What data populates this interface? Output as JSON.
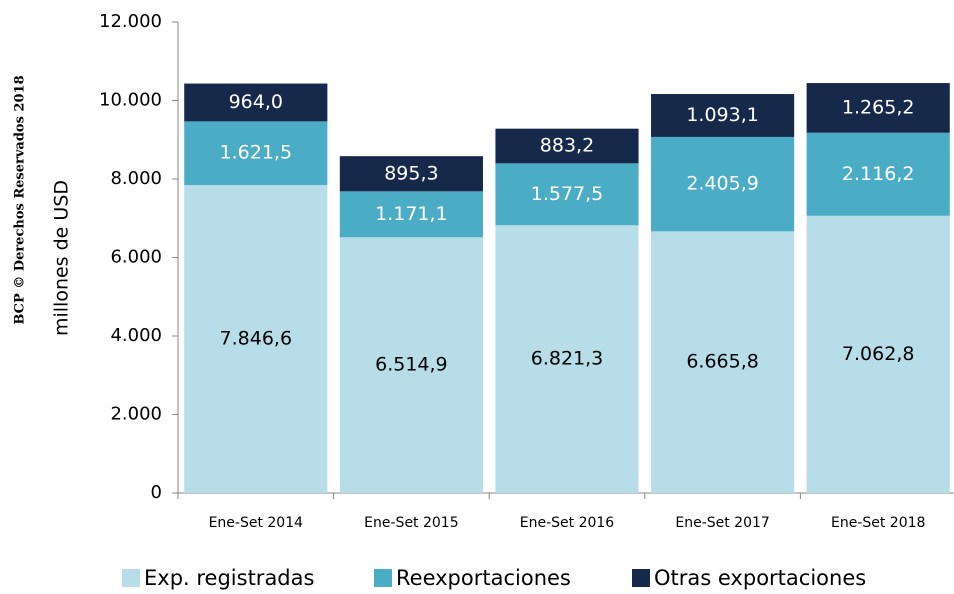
{
  "chart_data": {
    "type": "stacked_bar",
    "watermark": "BCP © Derechos Reservados 2018",
    "y_label": "millones de  USD",
    "categories": [
      "Ene-Set 2014",
      "Ene-Set 2015",
      "Ene-Set 2016",
      "Ene-Set 2017",
      "Ene-Set 2018"
    ],
    "series": [
      {
        "name": "Exp. registradas",
        "color": "#b7dde8",
        "label_color": "#000000",
        "values": [
          7846.6,
          6514.9,
          6821.3,
          6665.8,
          7062.8
        ],
        "value_labels": [
          "7.846,6",
          "6.514,9",
          "6.821,3",
          "6.665,8",
          "7.062,8"
        ]
      },
      {
        "name": "Reexportaciones",
        "color": "#4bacc6",
        "label_color": "#ffffff",
        "values": [
          1621.5,
          1171.1,
          1577.5,
          2405.9,
          2116.2
        ],
        "value_labels": [
          "1.621,5",
          "1.171,1",
          "1.577,5",
          "2.405,9",
          "2.116,2"
        ]
      },
      {
        "name": "Otras exportaciones",
        "color": "#17294a",
        "label_color": "#ffffff",
        "values": [
          964.0,
          895.3,
          883.2,
          1093.1,
          1265.2
        ],
        "value_labels": [
          "964,0",
          "895,3",
          "883,2",
          "1.093,1",
          "1.265,2"
        ]
      }
    ],
    "ylim": [
      0,
      12000
    ],
    "yticks": [
      0,
      {
        "value": 2000,
        "label": "2.000"
      },
      {
        "value": 4000,
        "label": "4.000"
      },
      {
        "value": 6000,
        "label": "6.000"
      },
      {
        "value": 8000,
        "label": "8.000"
      },
      {
        "value": 10000,
        "label": "10.000"
      },
      {
        "value": 12000,
        "label": "12.000"
      }
    ],
    "grid": false
  }
}
